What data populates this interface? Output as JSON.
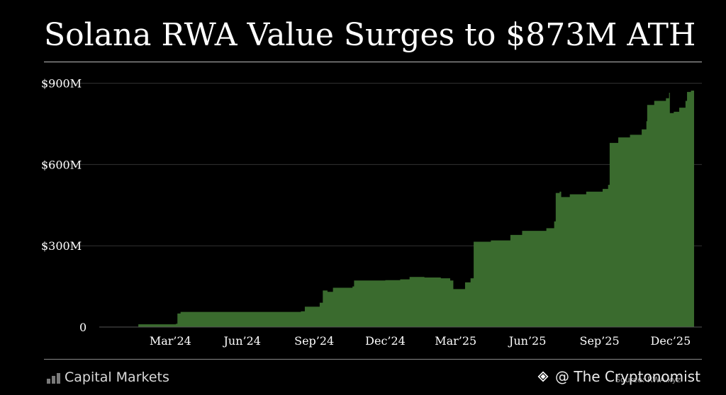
{
  "title": "Solana RWA Value Surges to $873M ATH",
  "brand": {
    "name": "Capital Markets",
    "icon": "bar-chart-icon"
  },
  "source": "Source: RWA.xyz",
  "watermark": {
    "text": "@ The Cryptonomist",
    "icon": "binance-diamond-icon"
  },
  "colors": {
    "fill": "#3a6b2e",
    "background": "#000000",
    "text": "#ffffff",
    "grid": "#333333"
  },
  "chart_data": {
    "type": "area",
    "title": "Solana RWA Value Surges to $873M ATH",
    "y_ticks": [
      {
        "value": 0,
        "label": "0"
      },
      {
        "value": 300,
        "label": "$300M"
      },
      {
        "value": 600,
        "label": "$600M"
      },
      {
        "value": 900,
        "label": "$900M"
      }
    ],
    "x_ticks": [
      {
        "date": "2024-03-01",
        "label": "Mar’24"
      },
      {
        "date": "2024-06-01",
        "label": "Jun’24"
      },
      {
        "date": "2024-09-01",
        "label": "Sep’24"
      },
      {
        "date": "2024-12-01",
        "label": "Dec’24"
      },
      {
        "date": "2025-03-01",
        "label": "Mar’25"
      },
      {
        "date": "2025-06-01",
        "label": "Jun’25"
      },
      {
        "date": "2025-09-01",
        "label": "Sep’25"
      },
      {
        "date": "2025-12-01",
        "label": "Dec’25"
      }
    ],
    "xlim": [
      "2023-12-01",
      "2026-01-10"
    ],
    "ylim": [
      0,
      920
    ],
    "unit": "$M",
    "grid": true,
    "series": [
      {
        "values": [
          [
            "2024-01-20",
            10
          ],
          [
            "2024-03-08",
            12
          ],
          [
            "2024-03-10",
            50
          ],
          [
            "2024-03-14",
            56
          ],
          [
            "2024-08-15",
            58
          ],
          [
            "2024-08-20",
            75
          ],
          [
            "2024-09-08",
            90
          ],
          [
            "2024-09-12",
            135
          ],
          [
            "2024-09-18",
            130
          ],
          [
            "2024-09-25",
            145
          ],
          [
            "2024-10-20",
            150
          ],
          [
            "2024-10-22",
            172
          ],
          [
            "2024-12-01",
            173
          ],
          [
            "2024-12-20",
            176
          ],
          [
            "2025-01-01",
            185
          ],
          [
            "2025-01-20",
            183
          ],
          [
            "2025-02-10",
            180
          ],
          [
            "2025-02-22",
            172
          ],
          [
            "2025-02-26",
            140
          ],
          [
            "2025-03-10",
            140
          ],
          [
            "2025-03-13",
            165
          ],
          [
            "2025-03-20",
            180
          ],
          [
            "2025-03-24",
            315
          ],
          [
            "2025-04-15",
            320
          ],
          [
            "2025-05-10",
            340
          ],
          [
            "2025-05-25",
            355
          ],
          [
            "2025-06-25",
            365
          ],
          [
            "2025-07-05",
            390
          ],
          [
            "2025-07-07",
            495
          ],
          [
            "2025-07-12",
            500
          ],
          [
            "2025-07-14",
            480
          ],
          [
            "2025-07-25",
            490
          ],
          [
            "2025-08-15",
            500
          ],
          [
            "2025-09-05",
            510
          ],
          [
            "2025-09-12",
            525
          ],
          [
            "2025-09-14",
            680
          ],
          [
            "2025-09-25",
            700
          ],
          [
            "2025-10-10",
            710
          ],
          [
            "2025-10-25",
            730
          ],
          [
            "2025-10-31",
            760
          ],
          [
            "2025-11-01",
            820
          ],
          [
            "2025-11-10",
            835
          ],
          [
            "2025-11-25",
            845
          ],
          [
            "2025-11-29",
            865
          ],
          [
            "2025-11-30",
            790
          ],
          [
            "2025-12-05",
            795
          ],
          [
            "2025-12-12",
            810
          ],
          [
            "2025-12-20",
            835
          ],
          [
            "2025-12-22",
            868
          ],
          [
            "2025-12-27",
            873
          ],
          [
            "2025-12-31",
            873
          ]
        ]
      }
    ]
  }
}
